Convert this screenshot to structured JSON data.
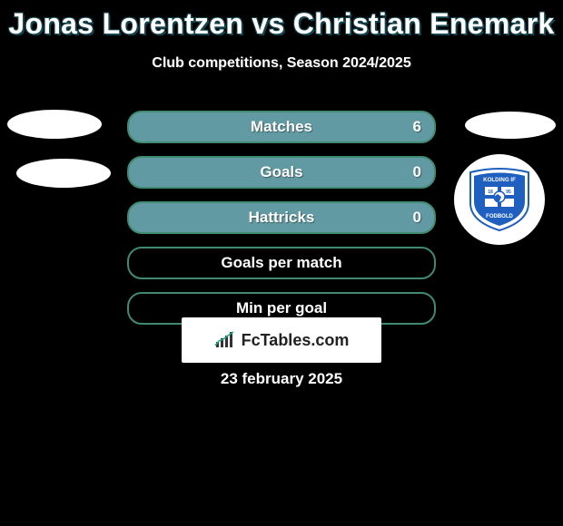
{
  "title": "Jonas Lorentzen vs Christian Enemark",
  "subtitle": "Club competitions, Season 2024/2025",
  "date": "23 february 2025",
  "watermark": "FcTables.com",
  "badge": {
    "top_text": "KOLDING IF",
    "bottom_text": "FODBOLD",
    "year": "1895",
    "primary_color": "#1e5fbf",
    "accent_color": "#ffffff"
  },
  "stats": [
    {
      "label": "Matches",
      "right_value": "6",
      "bg": "#629aa3",
      "border": "#3f8a71"
    },
    {
      "label": "Goals",
      "right_value": "0",
      "bg": "#629aa3",
      "border": "#3f8a71"
    },
    {
      "label": "Hattricks",
      "right_value": "0",
      "bg": "#629aa3",
      "border": "#3f8a71"
    },
    {
      "label": "Goals per match",
      "right_value": "",
      "bg": "transparent",
      "border": "#3f8a71"
    },
    {
      "label": "Min per goal",
      "right_value": "",
      "bg": "transparent",
      "border": "#3f8a71"
    }
  ],
  "colors": {
    "page_bg": "#000000",
    "title_color": "#ffffff",
    "title_outline": "#14454f"
  }
}
